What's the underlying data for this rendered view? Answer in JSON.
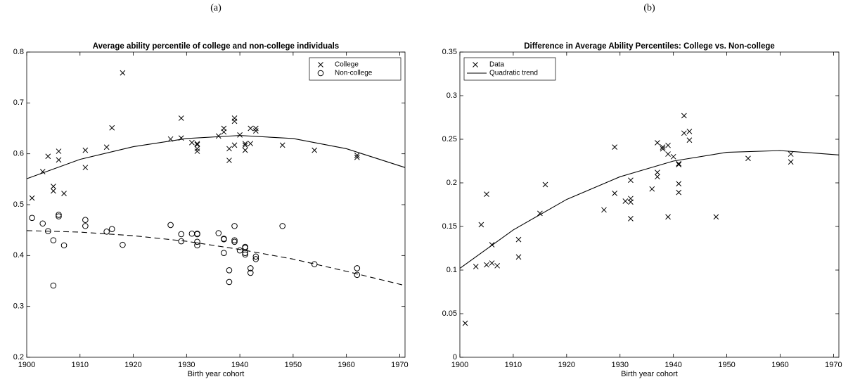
{
  "chart_data": [
    {
      "type": "scatter",
      "label": "(a)",
      "title": "Average ability percentile of college and non-college individuals",
      "x_label": "Birth year cohort",
      "xlim": [
        1900,
        1971
      ],
      "xticks": [
        1900,
        1910,
        1920,
        1930,
        1940,
        1950,
        1960,
        1970
      ],
      "ylim": [
        0.2,
        0.8
      ],
      "yticks": [
        0.2,
        0.3,
        0.4,
        0.5,
        0.6,
        0.7,
        0.8
      ],
      "legend": "upper right",
      "series": [
        {
          "name": "College",
          "marker": "x",
          "color": "#000000",
          "x": [
            1901,
            1903,
            1904,
            1905,
            1905,
            1906,
            1906,
            1907,
            1911,
            1911,
            1915,
            1916,
            1918,
            1927,
            1929,
            1929,
            1931,
            1932,
            1932,
            1932,
            1932,
            1936,
            1937,
            1937,
            1938,
            1938,
            1939,
            1939,
            1939,
            1940,
            1941,
            1941,
            1941,
            1942,
            1942,
            1943,
            1943,
            1948,
            1954,
            1962,
            1962
          ],
          "values": [
            0.513,
            0.565,
            0.595,
            0.536,
            0.527,
            0.605,
            0.588,
            0.522,
            0.607,
            0.573,
            0.613,
            0.651,
            0.759,
            0.629,
            0.67,
            0.631,
            0.622,
            0.62,
            0.618,
            0.61,
            0.605,
            0.635,
            0.65,
            0.643,
            0.61,
            0.587,
            0.67,
            0.664,
            0.617,
            0.637,
            0.62,
            0.617,
            0.607,
            0.62,
            0.65,
            0.65,
            0.645,
            0.617,
            0.607,
            0.597,
            0.593
          ]
        },
        {
          "name": "Non-college",
          "marker": "o",
          "color": "#000000",
          "x": [
            1901,
            1903,
            1904,
            1905,
            1905,
            1906,
            1906,
            1907,
            1911,
            1911,
            1915,
            1916,
            1918,
            1927,
            1929,
            1929,
            1931,
            1932,
            1932,
            1932,
            1932,
            1936,
            1937,
            1937,
            1937,
            1938,
            1938,
            1939,
            1939,
            1939,
            1940,
            1941,
            1941,
            1941,
            1941,
            1942,
            1942,
            1943,
            1943,
            1948,
            1954,
            1962,
            1962
          ],
          "values": [
            0.474,
            0.463,
            0.448,
            0.43,
            0.341,
            0.48,
            0.477,
            0.42,
            0.47,
            0.458,
            0.447,
            0.452,
            0.421,
            0.46,
            0.442,
            0.428,
            0.443,
            0.443,
            0.442,
            0.427,
            0.42,
            0.444,
            0.433,
            0.432,
            0.405,
            0.371,
            0.348,
            0.458,
            0.43,
            0.427,
            0.41,
            0.417,
            0.415,
            0.405,
            0.402,
            0.375,
            0.366,
            0.398,
            0.393,
            0.458,
            0.383,
            0.375,
            0.362
          ]
        },
        {
          "line": "solid",
          "color": "#000000",
          "x": [
            1900,
            1910,
            1920,
            1930,
            1940,
            1950,
            1960,
            1971
          ],
          "values": [
            0.551,
            0.589,
            0.614,
            0.63,
            0.636,
            0.63,
            0.61,
            0.573
          ]
        },
        {
          "line": "dashed",
          "color": "#000000",
          "x": [
            1900,
            1910,
            1920,
            1930,
            1940,
            1950,
            1960,
            1971
          ],
          "values": [
            0.449,
            0.446,
            0.439,
            0.428,
            0.412,
            0.393,
            0.369,
            0.341
          ]
        }
      ]
    },
    {
      "type": "scatter",
      "label": "(b)",
      "title": "Difference in Average Ability Percentiles: College vs. Non-college",
      "x_label": "Birth year cohort",
      "xlim": [
        1900,
        1971
      ],
      "xticks": [
        1900,
        1910,
        1920,
        1930,
        1940,
        1950,
        1960,
        1970
      ],
      "ylim": [
        0,
        0.35
      ],
      "yticks": [
        0,
        0.05,
        0.1,
        0.15,
        0.2,
        0.25,
        0.3,
        0.35
      ],
      "legend": "upper left",
      "series": [
        {
          "name": "Data",
          "marker": "x",
          "color": "#000000",
          "x": [
            1901,
            1903,
            1904,
            1905,
            1905,
            1906,
            1906,
            1907,
            1911,
            1911,
            1915,
            1916,
            1927,
            1929,
            1929,
            1931,
            1932,
            1932,
            1932,
            1932,
            1936,
            1937,
            1937,
            1937,
            1938,
            1938,
            1939,
            1939,
            1939,
            1940,
            1941,
            1941,
            1941,
            1941,
            1942,
            1942,
            1943,
            1943,
            1948,
            1954,
            1962,
            1962
          ],
          "values": [
            0.039,
            0.104,
            0.152,
            0.187,
            0.106,
            0.129,
            0.108,
            0.105,
            0.135,
            0.115,
            0.165,
            0.198,
            0.169,
            0.241,
            0.188,
            0.179,
            0.203,
            0.182,
            0.178,
            0.159,
            0.193,
            0.246,
            0.212,
            0.207,
            0.241,
            0.239,
            0.243,
            0.233,
            0.161,
            0.23,
            0.221,
            0.222,
            0.199,
            0.189,
            0.277,
            0.257,
            0.259,
            0.249,
            0.161,
            0.228,
            0.233,
            0.224
          ]
        },
        {
          "name": "Quadratic trend",
          "line": "solid",
          "color": "#000000",
          "x": [
            1900,
            1910,
            1920,
            1930,
            1940,
            1950,
            1960,
            1971
          ],
          "values": [
            0.102,
            0.146,
            0.181,
            0.207,
            0.225,
            0.235,
            0.237,
            0.232
          ]
        }
      ]
    }
  ]
}
